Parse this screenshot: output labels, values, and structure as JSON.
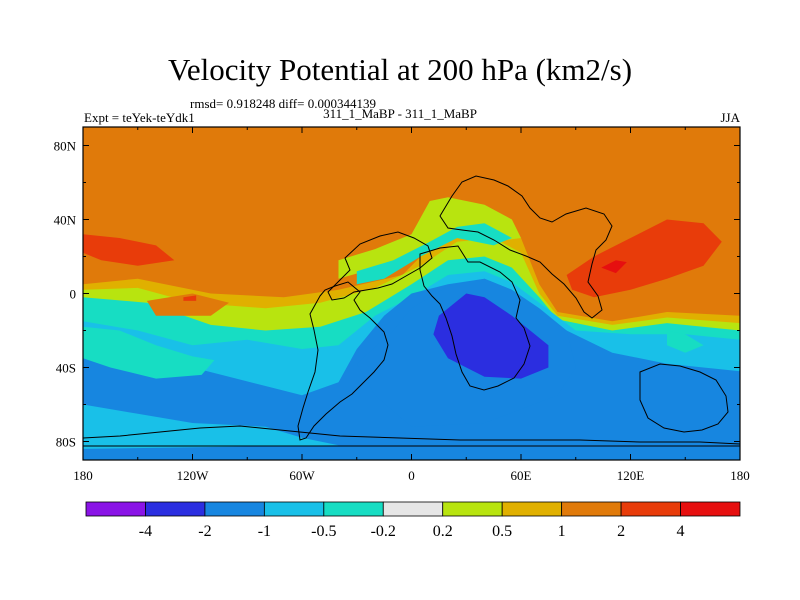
{
  "chart_data": {
    "type": "heatmap",
    "title": "Velocity Potential at 200 hPa (km2/s)",
    "stats": "rmsd= 0.918248 diff= 0.000344139",
    "left_label": "Expt = teYek-teYdk1",
    "center_label": "311_1_MaBP - 311_1_MaBP",
    "right_label": "JJA",
    "x_ticks": [
      "180",
      "120W",
      "60W",
      "0",
      "60E",
      "120E",
      "180"
    ],
    "x_tick_values": [
      -180,
      -120,
      -60,
      0,
      60,
      120,
      180
    ],
    "y_ticks": [
      "80N",
      "40N",
      "0",
      "40S",
      "80S"
    ],
    "y_tick_values": [
      80,
      40,
      0,
      -40,
      -80
    ],
    "xlim": [
      -180,
      180
    ],
    "ylim": [
      -90,
      90
    ],
    "colorbar": {
      "levels": [
        "-4",
        "-2",
        "-1",
        "-0.5",
        "-0.2",
        "0.2",
        "0.5",
        "1",
        "2",
        "4"
      ],
      "colors": [
        "#8a14e6",
        "#2b2ee0",
        "#1786e0",
        "#19c0e8",
        "#17ddc3",
        "#e6e6e6",
        "#b8e40f",
        "#e0b000",
        "#e07a0a",
        "#e83c0a",
        "#e60f0f"
      ]
    },
    "field_regions": [
      {
        "name": "background",
        "value_class": 1,
        "points": [
          [
            -180,
            90
          ],
          [
            180,
            90
          ],
          [
            180,
            -90
          ],
          [
            -180,
            -90
          ]
        ]
      },
      {
        "name": "south-positive-band",
        "value_class": 0.5,
        "points": [
          [
            -180,
            5
          ],
          [
            -150,
            8
          ],
          [
            -110,
            0
          ],
          [
            -70,
            -2
          ],
          [
            -40,
            2
          ],
          [
            -5,
            10
          ],
          [
            10,
            25
          ],
          [
            30,
            36
          ],
          [
            60,
            30
          ],
          [
            70,
            5
          ],
          [
            80,
            -10
          ],
          [
            110,
            -15
          ],
          [
            140,
            -10
          ],
          [
            180,
            -12
          ],
          [
            180,
            -90
          ],
          [
            -180,
            -90
          ]
        ]
      },
      {
        "name": "south-weak-band",
        "value_class": 0.2,
        "points": [
          [
            -180,
            2
          ],
          [
            -150,
            3
          ],
          [
            -120,
            -5
          ],
          [
            -80,
            -8
          ],
          [
            -50,
            -5
          ],
          [
            -20,
            3
          ],
          [
            5,
            15
          ],
          [
            25,
            28
          ],
          [
            45,
            30
          ],
          [
            60,
            22
          ],
          [
            70,
            0
          ],
          [
            80,
            -12
          ],
          [
            110,
            -17
          ],
          [
            140,
            -13
          ],
          [
            180,
            -16
          ],
          [
            180,
            -90
          ],
          [
            -180,
            -90
          ]
        ]
      },
      {
        "name": "south-neutral-band",
        "value_class": -0.2,
        "points": [
          [
            -180,
            -2
          ],
          [
            -145,
            -5
          ],
          [
            -110,
            -17
          ],
          [
            -80,
            -20
          ],
          [
            -50,
            -18
          ],
          [
            -25,
            -10
          ],
          [
            0,
            5
          ],
          [
            20,
            18
          ],
          [
            40,
            20
          ],
          [
            55,
            14
          ],
          [
            70,
            -2
          ],
          [
            80,
            -14
          ],
          [
            110,
            -20
          ],
          [
            140,
            -16
          ],
          [
            180,
            -20
          ],
          [
            180,
            -90
          ],
          [
            -180,
            -90
          ]
        ]
      },
      {
        "name": "southern-negative",
        "value_class": -0.5,
        "points": [
          [
            -180,
            -15
          ],
          [
            -150,
            -20
          ],
          [
            -120,
            -28
          ],
          [
            -90,
            -25
          ],
          [
            -60,
            -30
          ],
          [
            -40,
            -28
          ],
          [
            -20,
            -12
          ],
          [
            0,
            -2
          ],
          [
            20,
            10
          ],
          [
            40,
            12
          ],
          [
            55,
            6
          ],
          [
            70,
            -5
          ],
          [
            90,
            -20
          ],
          [
            120,
            -22
          ],
          [
            150,
            -22
          ],
          [
            180,
            -25
          ],
          [
            180,
            -90
          ],
          [
            -180,
            -90
          ]
        ]
      },
      {
        "name": "broad-negative",
        "value_class": -1,
        "points": [
          [
            -180,
            -28
          ],
          [
            -150,
            -32
          ],
          [
            -120,
            -40
          ],
          [
            -100,
            -45
          ],
          [
            -80,
            -50
          ],
          [
            -60,
            -55
          ],
          [
            -40,
            -48
          ],
          [
            -30,
            -30
          ],
          [
            -15,
            -12
          ],
          [
            0,
            0
          ],
          [
            20,
            5
          ],
          [
            40,
            8
          ],
          [
            55,
            2
          ],
          [
            70,
            -8
          ],
          [
            85,
            -20
          ],
          [
            110,
            -32
          ],
          [
            140,
            -38
          ],
          [
            180,
            -42
          ],
          [
            180,
            -90
          ],
          [
            -180,
            -90
          ]
        ]
      },
      {
        "name": "negative-center",
        "value_class": -1,
        "points": [
          [
            -10,
            -20
          ],
          [
            0,
            -8
          ],
          [
            20,
            4
          ],
          [
            40,
            8
          ],
          [
            55,
            2
          ],
          [
            70,
            -10
          ],
          [
            85,
            -20
          ],
          [
            90,
            -40
          ],
          [
            80,
            -55
          ],
          [
            40,
            -70
          ],
          [
            0,
            -72
          ],
          [
            -20,
            -55
          ],
          [
            -30,
            -38
          ]
        ]
      },
      {
        "name": "negative-core",
        "value_class": -2,
        "points": [
          [
            15,
            -12
          ],
          [
            30,
            0
          ],
          [
            40,
            -2
          ],
          [
            55,
            -12
          ],
          [
            75,
            -28
          ],
          [
            75,
            -40
          ],
          [
            60,
            -46
          ],
          [
            40,
            -45
          ],
          [
            20,
            -35
          ],
          [
            12,
            -22
          ]
        ]
      },
      {
        "name": "southern-gap",
        "value_class": -0.5,
        "points": [
          [
            -180,
            -60
          ],
          [
            -150,
            -65
          ],
          [
            -120,
            -70
          ],
          [
            -80,
            -72
          ],
          [
            -60,
            -78
          ],
          [
            -40,
            -82
          ],
          [
            -180,
            -84
          ]
        ]
      },
      {
        "name": "southern-neutral-patch",
        "value_class": -0.2,
        "points": [
          [
            -180,
            -18
          ],
          [
            -160,
            -20
          ],
          [
            -140,
            -28
          ],
          [
            -120,
            -34
          ],
          [
            -108,
            -36
          ],
          [
            -115,
            -44
          ],
          [
            -140,
            -46
          ],
          [
            -165,
            -40
          ],
          [
            -180,
            -35
          ]
        ]
      },
      {
        "name": "north-weak-wedge",
        "value_class": 0.2,
        "points": [
          [
            -40,
            18
          ],
          [
            -20,
            24
          ],
          [
            0,
            32
          ],
          [
            10,
            50
          ],
          [
            20,
            52
          ],
          [
            40,
            48
          ],
          [
            55,
            40
          ],
          [
            60,
            30
          ],
          [
            45,
            28
          ],
          [
            25,
            34
          ],
          [
            5,
            25
          ],
          [
            -15,
            15
          ],
          [
            -40,
            8
          ]
        ]
      },
      {
        "name": "north-neutral-wedge",
        "value_class": -0.2,
        "points": [
          [
            -30,
            12
          ],
          [
            -10,
            18
          ],
          [
            10,
            28
          ],
          [
            25,
            36
          ],
          [
            40,
            38
          ],
          [
            55,
            30
          ],
          [
            45,
            26
          ],
          [
            25,
            30
          ],
          [
            5,
            20
          ],
          [
            -15,
            8
          ],
          [
            -30,
            5
          ]
        ]
      },
      {
        "name": "atlantic-positive",
        "value_class": 2,
        "points": [
          [
            -180,
            32
          ],
          [
            -160,
            30
          ],
          [
            -140,
            26
          ],
          [
            -130,
            18
          ],
          [
            -150,
            15
          ],
          [
            -170,
            18
          ],
          [
            -180,
            22
          ]
        ]
      },
      {
        "name": "east-positive",
        "value_class": 2,
        "points": [
          [
            85,
            10
          ],
          [
            100,
            20
          ],
          [
            120,
            30
          ],
          [
            140,
            40
          ],
          [
            160,
            38
          ],
          [
            170,
            28
          ],
          [
            160,
            15
          ],
          [
            140,
            8
          ],
          [
            120,
            2
          ],
          [
            100,
            -2
          ],
          [
            88,
            2
          ]
        ]
      },
      {
        "name": "east-positive-core",
        "value_class": 4,
        "points": [
          [
            104,
            14
          ],
          [
            112,
            18
          ],
          [
            118,
            17
          ],
          [
            112,
            11
          ]
        ]
      },
      {
        "name": "west-positive-patch",
        "value_class": 1,
        "points": [
          [
            -145,
            -4
          ],
          [
            -120,
            0
          ],
          [
            -100,
            -5
          ],
          [
            -110,
            -12
          ],
          [
            -140,
            -12
          ]
        ]
      },
      {
        "name": "west-strong-dot",
        "value_class": 2,
        "points": [
          [
            -125,
            -2
          ],
          [
            -118,
            -1
          ],
          [
            -118,
            -4
          ],
          [
            -125,
            -4
          ]
        ]
      },
      {
        "name": "pacific-neutral-patch",
        "value_class": -0.2,
        "points": [
          [
            140,
            -20
          ],
          [
            150,
            -22
          ],
          [
            160,
            -28
          ],
          [
            150,
            -32
          ],
          [
            140,
            -28
          ]
        ]
      }
    ]
  }
}
